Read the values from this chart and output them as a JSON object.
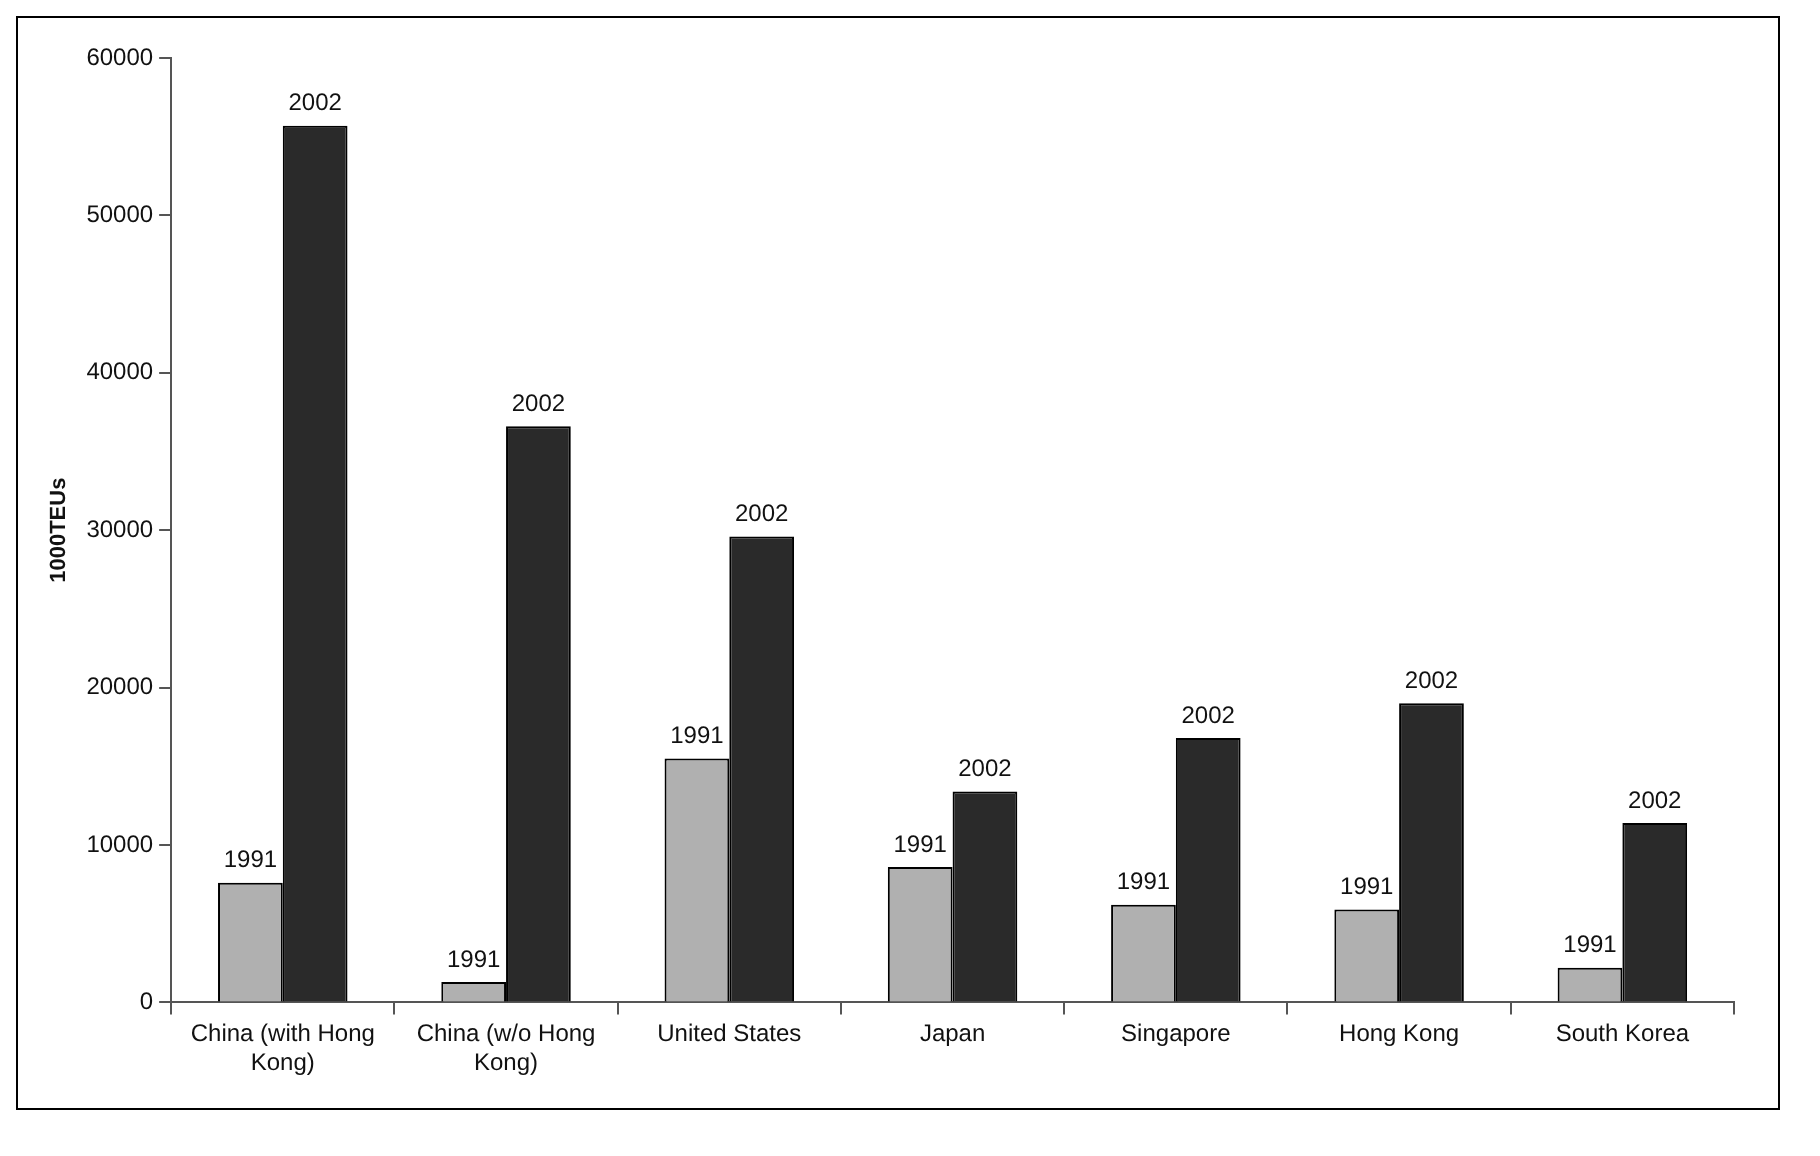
{
  "chart_data": {
    "type": "bar",
    "ylabel": "1000TEUs",
    "categories": [
      "China (with Hong Kong)",
      "China (w/o Hong Kong)",
      "United States",
      "Japan",
      "Singapore",
      "Hong Kong",
      "South Korea"
    ],
    "series": [
      {
        "name": "1991",
        "color": "#b0b0b0",
        "values": [
          7600,
          1300,
          15500,
          8600,
          6200,
          5900,
          2200
        ]
      },
      {
        "name": "2002",
        "color": "#2a2a2a",
        "values": [
          55700,
          36600,
          29600,
          13400,
          16800,
          19000,
          11400
        ]
      }
    ],
    "ylim": [
      0,
      60000
    ],
    "yticks": [
      0,
      10000,
      20000,
      30000,
      40000,
      50000,
      60000
    ],
    "grid": false,
    "legend": false
  }
}
